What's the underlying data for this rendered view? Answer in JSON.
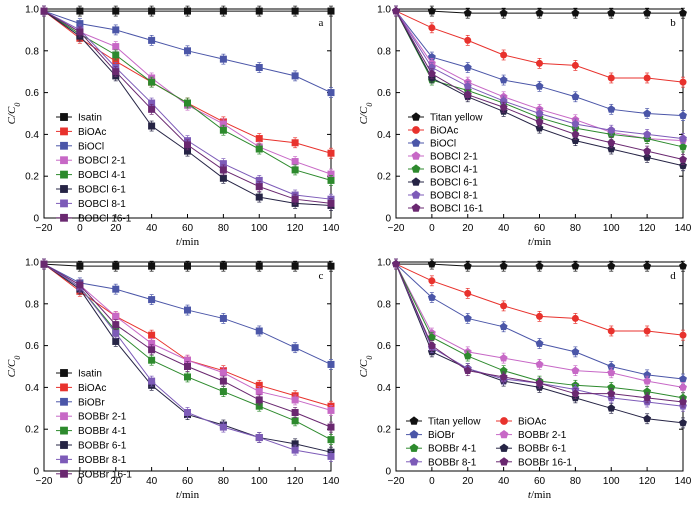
{
  "figure": {
    "panel_count": 4
  },
  "chart_data": [
    {
      "type": "line",
      "panel_label": "a",
      "xlabel": "t/min",
      "ylabel": "C/C0",
      "x": [
        -20,
        0,
        20,
        40,
        60,
        80,
        100,
        120,
        140
      ],
      "xlim": [
        -20,
        140
      ],
      "ylim": [
        0,
        1.0
      ],
      "xticks": [
        -20,
        0,
        20,
        40,
        60,
        80,
        100,
        120,
        140
      ],
      "yticks": [
        0,
        0.2,
        0.4,
        0.6,
        0.8,
        1.0
      ],
      "ytick_labels": [
        "0",
        "0.2",
        "0.4",
        "0.6",
        "0.8",
        "1.0"
      ],
      "legend_position": "bottom-left",
      "legend_columns": 1,
      "series": [
        {
          "name": "Isatin",
          "color": "#111111",
          "marker": "square",
          "values": [
            0.99,
            0.99,
            0.99,
            0.99,
            0.99,
            0.99,
            0.99,
            0.99,
            0.99
          ]
        },
        {
          "name": "BiOAc",
          "color": "#e8322d",
          "marker": "square",
          "values": [
            0.99,
            0.86,
            0.75,
            0.65,
            0.55,
            0.46,
            0.38,
            0.36,
            0.31
          ]
        },
        {
          "name": "BiOCl",
          "color": "#4b56a8",
          "marker": "square",
          "values": [
            0.99,
            0.93,
            0.9,
            0.85,
            0.8,
            0.76,
            0.72,
            0.68,
            0.6
          ]
        },
        {
          "name": "BOBCl 2-1",
          "color": "#c768c6",
          "marker": "square",
          "values": [
            0.99,
            0.89,
            0.82,
            0.67,
            0.54,
            0.45,
            0.34,
            0.27,
            0.21
          ]
        },
        {
          "name": "BOBCl 4-1",
          "color": "#2d8a2d",
          "marker": "square",
          "values": [
            0.99,
            0.88,
            0.78,
            0.65,
            0.55,
            0.42,
            0.33,
            0.23,
            0.18
          ]
        },
        {
          "name": "BOBCl 6-1",
          "color": "#262445",
          "marker": "square",
          "values": [
            0.99,
            0.87,
            0.68,
            0.44,
            0.32,
            0.19,
            0.1,
            0.07,
            0.06
          ]
        },
        {
          "name": "BOBCl 8-1",
          "color": "#7d5bb8",
          "marker": "square",
          "values": [
            0.99,
            0.9,
            0.72,
            0.55,
            0.37,
            0.26,
            0.18,
            0.11,
            0.09
          ]
        },
        {
          "name": "BOBCl 16-1",
          "color": "#6a2870",
          "marker": "square",
          "values": [
            0.99,
            0.89,
            0.7,
            0.52,
            0.35,
            0.23,
            0.15,
            0.09,
            0.07
          ]
        }
      ]
    },
    {
      "type": "line",
      "panel_label": "b",
      "xlabel": "t/min",
      "ylabel": "C/C0",
      "x": [
        -20,
        0,
        20,
        40,
        60,
        80,
        100,
        120,
        140
      ],
      "xlim": [
        -20,
        140
      ],
      "ylim": [
        0,
        1.0
      ],
      "xticks": [
        -20,
        0,
        20,
        40,
        60,
        80,
        100,
        120,
        140
      ],
      "yticks": [
        0,
        0.2,
        0.4,
        0.6,
        0.8,
        1.0
      ],
      "ytick_labels": [
        "0",
        "0.2",
        "0.4",
        "0.6",
        "0.8",
        "1.0"
      ],
      "legend_position": "bottom-left",
      "legend_columns": 1,
      "series": [
        {
          "name": "Titan yellow",
          "color": "#111111",
          "marker": "pentagon",
          "values": [
            0.99,
            0.99,
            0.98,
            0.98,
            0.98,
            0.98,
            0.98,
            0.98,
            0.98
          ]
        },
        {
          "name": "BiOAc",
          "color": "#e8322d",
          "marker": "circle",
          "values": [
            0.99,
            0.91,
            0.85,
            0.78,
            0.74,
            0.73,
            0.67,
            0.67,
            0.65
          ]
        },
        {
          "name": "BiOCl",
          "color": "#4b56a8",
          "marker": "pentagon",
          "values": [
            0.99,
            0.77,
            0.72,
            0.66,
            0.63,
            0.58,
            0.52,
            0.5,
            0.49
          ]
        },
        {
          "name": "BOBCl 2-1",
          "color": "#c768c6",
          "marker": "pentagon",
          "values": [
            0.99,
            0.74,
            0.65,
            0.58,
            0.52,
            0.47,
            0.41,
            0.38,
            0.37
          ]
        },
        {
          "name": "BOBCl 4-1",
          "color": "#2d8a2d",
          "marker": "pentagon",
          "values": [
            0.99,
            0.66,
            0.61,
            0.55,
            0.48,
            0.43,
            0.4,
            0.38,
            0.34
          ]
        },
        {
          "name": "BOBCl 6-1",
          "color": "#262445",
          "marker": "pentagon",
          "values": [
            0.99,
            0.67,
            0.58,
            0.51,
            0.43,
            0.37,
            0.33,
            0.29,
            0.25
          ]
        },
        {
          "name": "BOBCl 8-1",
          "color": "#7d5bb8",
          "marker": "pentagon",
          "values": [
            0.99,
            0.72,
            0.63,
            0.56,
            0.5,
            0.45,
            0.42,
            0.4,
            0.38
          ]
        },
        {
          "name": "BOBCl 16-1",
          "color": "#6a2870",
          "marker": "pentagon",
          "values": [
            0.99,
            0.69,
            0.59,
            0.53,
            0.46,
            0.4,
            0.36,
            0.32,
            0.28
          ]
        }
      ]
    },
    {
      "type": "line",
      "panel_label": "c",
      "xlabel": "t/min",
      "ylabel": "C/C0",
      "x": [
        -20,
        0,
        20,
        40,
        60,
        80,
        100,
        120,
        140
      ],
      "xlim": [
        -20,
        140
      ],
      "ylim": [
        0,
        1.0
      ],
      "xticks": [
        -20,
        0,
        20,
        40,
        60,
        80,
        100,
        120,
        140
      ],
      "yticks": [
        0,
        0.2,
        0.4,
        0.6,
        0.8,
        1.0
      ],
      "ytick_labels": [
        "0",
        "0.2",
        "0.4",
        "0.6",
        "0.8",
        "1.0"
      ],
      "legend_position": "bottom-left",
      "legend_columns": 1,
      "series": [
        {
          "name": "Isatin",
          "color": "#111111",
          "marker": "square",
          "values": [
            0.99,
            0.98,
            0.98,
            0.98,
            0.98,
            0.98,
            0.98,
            0.98,
            0.98
          ]
        },
        {
          "name": "BiOAc",
          "color": "#e8322d",
          "marker": "square",
          "values": [
            0.99,
            0.86,
            0.74,
            0.65,
            0.53,
            0.48,
            0.41,
            0.36,
            0.31
          ]
        },
        {
          "name": "BiOBr",
          "color": "#4b56a8",
          "marker": "square",
          "values": [
            0.99,
            0.9,
            0.87,
            0.82,
            0.77,
            0.73,
            0.67,
            0.59,
            0.51
          ]
        },
        {
          "name": "BOBBr 2-1",
          "color": "#c768c6",
          "marker": "square",
          "values": [
            0.99,
            0.89,
            0.74,
            0.61,
            0.53,
            0.47,
            0.38,
            0.34,
            0.29
          ]
        },
        {
          "name": "BOBBr 4-1",
          "color": "#2d8a2d",
          "marker": "square",
          "values": [
            0.99,
            0.88,
            0.67,
            0.53,
            0.45,
            0.38,
            0.31,
            0.24,
            0.15
          ]
        },
        {
          "name": "BOBBr 6-1",
          "color": "#262445",
          "marker": "square",
          "values": [
            0.99,
            0.87,
            0.62,
            0.41,
            0.27,
            0.22,
            0.16,
            0.13,
            0.09
          ]
        },
        {
          "name": "BOBBr 8-1",
          "color": "#7d5bb8",
          "marker": "square",
          "values": [
            0.99,
            0.88,
            0.66,
            0.43,
            0.28,
            0.21,
            0.16,
            0.1,
            0.07
          ]
        },
        {
          "name": "BOBBr 16-1",
          "color": "#6a2870",
          "marker": "square",
          "values": [
            0.99,
            0.89,
            0.7,
            0.58,
            0.5,
            0.43,
            0.34,
            0.28,
            0.21
          ]
        }
      ]
    },
    {
      "type": "line",
      "panel_label": "d",
      "xlabel": "t/min",
      "ylabel": "C/C0",
      "x": [
        -20,
        0,
        20,
        40,
        60,
        80,
        100,
        120,
        140
      ],
      "xlim": [
        -20,
        140
      ],
      "ylim": [
        0,
        1.0
      ],
      "xticks": [
        -20,
        0,
        20,
        40,
        60,
        80,
        100,
        120,
        140
      ],
      "yticks": [
        0,
        0.2,
        0.4,
        0.6,
        0.8,
        1.0
      ],
      "ytick_labels": [
        "0",
        "0.2",
        "0.4",
        "0.6",
        "0.8",
        "1.0"
      ],
      "legend_position": "bottom-left",
      "legend_columns": 2,
      "series": [
        {
          "name": "Titan yellow",
          "color": "#111111",
          "marker": "pentagon",
          "values": [
            0.99,
            0.99,
            0.98,
            0.98,
            0.98,
            0.98,
            0.98,
            0.98,
            0.98
          ]
        },
        {
          "name": "BiOAc",
          "color": "#e8322d",
          "marker": "circle",
          "values": [
            0.99,
            0.91,
            0.85,
            0.79,
            0.74,
            0.73,
            0.67,
            0.67,
            0.65
          ]
        },
        {
          "name": "BiOBr",
          "color": "#4b56a8",
          "marker": "pentagon",
          "values": [
            0.99,
            0.83,
            0.73,
            0.69,
            0.61,
            0.57,
            0.5,
            0.46,
            0.44
          ]
        },
        {
          "name": "BOBBr 2-1",
          "color": "#c768c6",
          "marker": "pentagon",
          "values": [
            0.99,
            0.66,
            0.57,
            0.54,
            0.51,
            0.48,
            0.47,
            0.43,
            0.4
          ]
        },
        {
          "name": "BOBBr 4-1",
          "color": "#2d8a2d",
          "marker": "pentagon",
          "values": [
            0.99,
            0.64,
            0.55,
            0.48,
            0.43,
            0.41,
            0.4,
            0.38,
            0.35
          ]
        },
        {
          "name": "BOBBr 6-1",
          "color": "#262445",
          "marker": "pentagon",
          "values": [
            0.99,
            0.57,
            0.49,
            0.43,
            0.4,
            0.35,
            0.3,
            0.25,
            0.23
          ]
        },
        {
          "name": "BOBBr 8-1",
          "color": "#7d5bb8",
          "marker": "pentagon",
          "values": [
            0.99,
            0.59,
            0.49,
            0.44,
            0.42,
            0.39,
            0.35,
            0.33,
            0.31
          ]
        },
        {
          "name": "BOBBr 16-1",
          "color": "#6a2870",
          "marker": "pentagon",
          "values": [
            0.99,
            0.6,
            0.48,
            0.45,
            0.42,
            0.37,
            0.37,
            0.35,
            0.33
          ]
        }
      ]
    }
  ]
}
